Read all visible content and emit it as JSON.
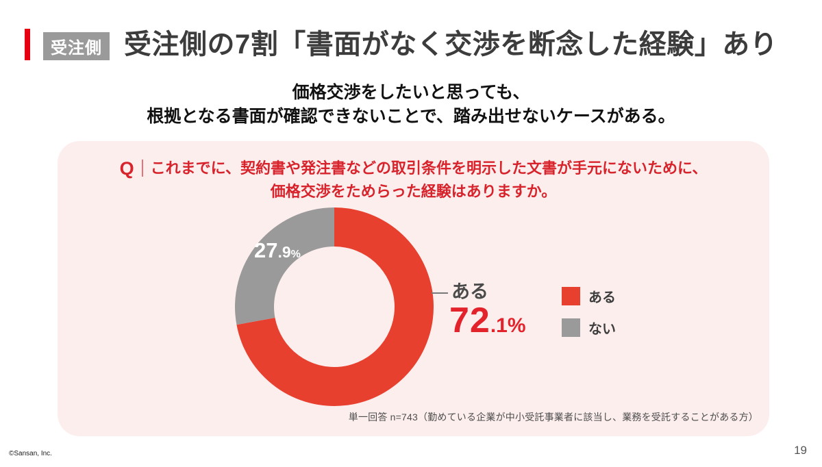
{
  "theme": {
    "accent_red": "#e60012",
    "chart_red": "#e8402f",
    "question_red": "#d7232b",
    "value_red": "#e3232b",
    "gray": "#9a9a9a",
    "panel_pink": "#fdeeee",
    "title_color": "#3c3c3c"
  },
  "header": {
    "badge_label": "受注側",
    "title": "受注側の7割「書面がなく交渉を断念した経験」あり"
  },
  "subtitle": {
    "line1": "価格交渉をしたいと思っても、",
    "line2": "根拠となる書面が確認できないことで、踏み出せないケースがある。"
  },
  "question": {
    "prefix": "Q",
    "line1": "これまでに、契約書や発注書などの取引条件を明示した文書が手元にないために、",
    "line2": "価格交渉をためらった経験はありますか。"
  },
  "chart_data": {
    "type": "pie",
    "donut": true,
    "title": "これまでに、契約書や発注書などの取引条件を明示した文書が手元にないために、価格交渉をためらった経験はありますか。",
    "categories": [
      "ある",
      "ない"
    ],
    "values": [
      72.1,
      27.9
    ],
    "unit": "%",
    "colors": [
      "#e8402f",
      "#9a9a9a"
    ],
    "start_angle_deg": -90,
    "direction": "clockwise",
    "legend_position": "right",
    "note": "単一回答 n=743（勤めている企業が中小受託事業者に該当し、業務を受託することがある方）"
  },
  "donut_labels": {
    "nai_slice": {
      "main": "27",
      "dec": ".9",
      "unit": "%"
    },
    "callout": {
      "category": "ある",
      "value_main": "72",
      "value_rest": ".1%"
    }
  },
  "legend": [
    {
      "label": "ある",
      "color": "#e8402f"
    },
    {
      "label": "ない",
      "color": "#9a9a9a"
    }
  ],
  "footer": {
    "copyright": "©Sansan, Inc.",
    "page_number": "19"
  }
}
